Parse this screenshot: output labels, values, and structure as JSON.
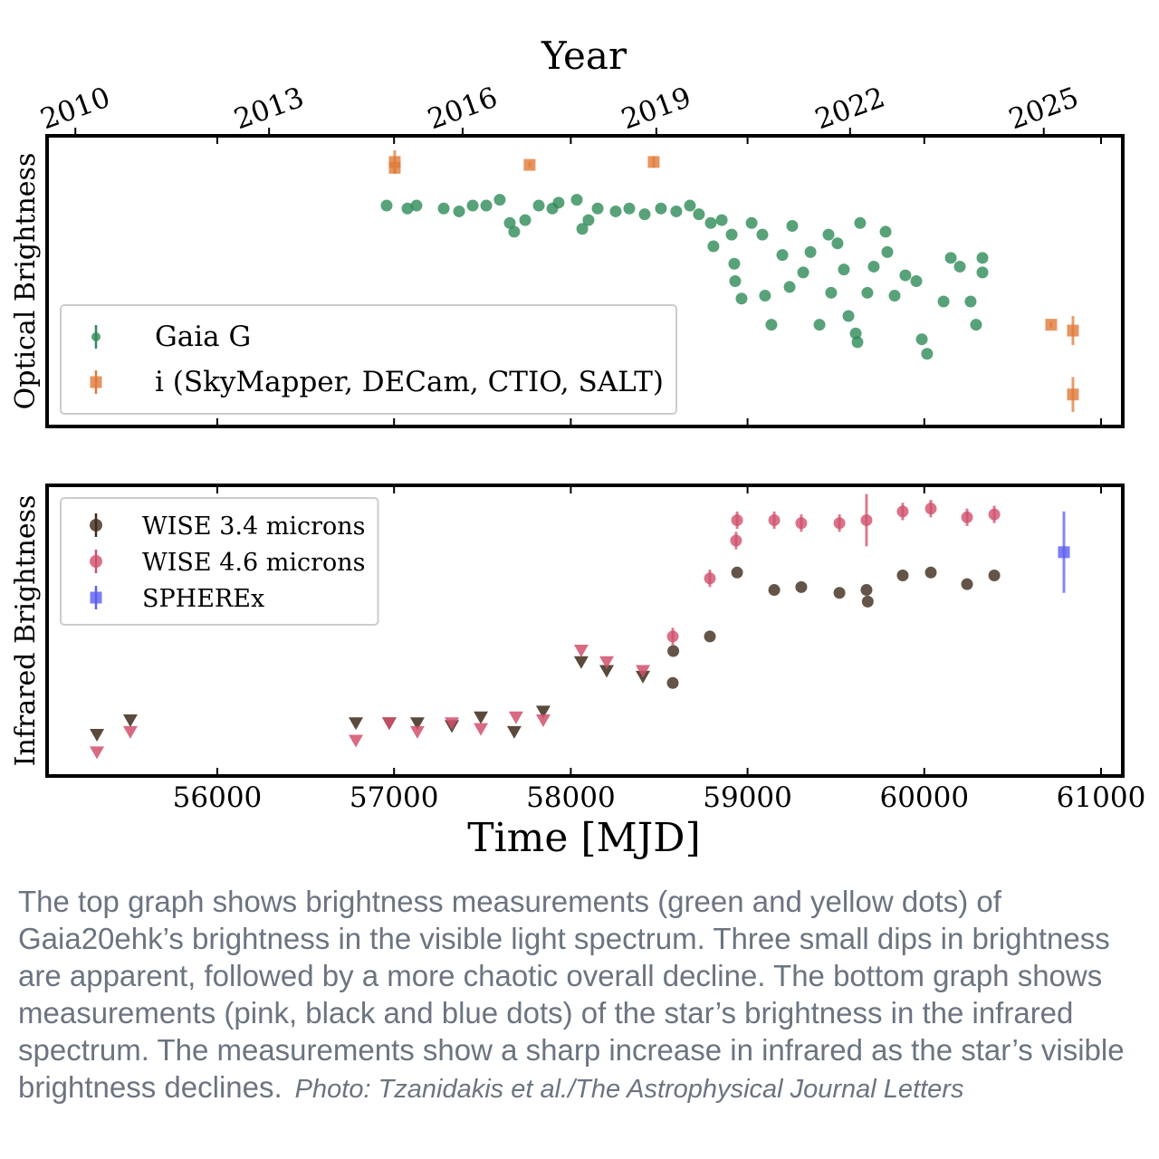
{
  "chart_data": [
    {
      "type": "scatter",
      "x2label": "Year",
      "ylabel": "Optical Brightness",
      "legend": "lower left",
      "xlim": [
        55037,
        61123
      ],
      "ylim": [
        0,
        100
      ],
      "xticks": [
        56000,
        57000,
        58000,
        59000,
        60000,
        61000
      ],
      "x2ticks": [
        {
          "value": 55197,
          "label": "2010"
        },
        {
          "value": 56293,
          "label": "2013"
        },
        {
          "value": 57388,
          "label": "2016"
        },
        {
          "value": 58484,
          "label": "2019"
        },
        {
          "value": 59580,
          "label": "2022"
        },
        {
          "value": 60676,
          "label": "2025"
        }
      ],
      "series": [
        {
          "name": "Gaia G",
          "color": "#2e8b57",
          "marker": "o",
          "x": [
            56958,
            57076,
            57127,
            57281,
            57368,
            57445,
            57522,
            57598,
            57655,
            57680,
            57742,
            57819,
            57896,
            57931,
            58034,
            58065,
            58100,
            58152,
            58254,
            58331,
            58418,
            58510,
            58597,
            58674,
            58725,
            58792,
            58854,
            58807,
            58910,
            58925,
            58930,
            58966,
            59023,
            59084,
            59099,
            59135,
            59197,
            59238,
            59253,
            59315,
            59356,
            59407,
            59458,
            59473,
            59509,
            59545,
            59571,
            59612,
            59622,
            59637,
            59678,
            59714,
            59781,
            59791,
            59832,
            59893,
            59955,
            59986,
            60016,
            60109,
            60150,
            60201,
            60262,
            60293,
            60329,
            60329
          ],
          "values": [
            76,
            75,
            76,
            75,
            74,
            76,
            76,
            78,
            70,
            67,
            71,
            76,
            75,
            77,
            78,
            68,
            71,
            75,
            74,
            75,
            73,
            75,
            74,
            76,
            73,
            70,
            71,
            62,
            66,
            56,
            50,
            44,
            70,
            66,
            45,
            35,
            59,
            48,
            69,
            53,
            60,
            35,
            66,
            46,
            63,
            54,
            38,
            32,
            29,
            70,
            46,
            55,
            67,
            60,
            45,
            52,
            50,
            30,
            25,
            43,
            58,
            55,
            43,
            35,
            58,
            53
          ]
        },
        {
          "name": "i (SkyMapper, DECam, CTIO, SALT)",
          "color": "#e07b39",
          "marker": "s",
          "x": [
            57004,
            57004,
            57767,
            58469,
            60718,
            60841,
            60841
          ],
          "values": [
            91,
            89,
            90,
            91,
            35,
            33,
            11
          ],
          "errors": [
            4,
            2,
            1,
            2,
            1,
            5,
            6
          ]
        }
      ]
    },
    {
      "type": "scatter",
      "xlabel": "Time [MJD]",
      "ylabel": "Infrared Brightness",
      "legend": "upper left",
      "xlim": [
        55037,
        61123
      ],
      "ylim": [
        0,
        100
      ],
      "xticks": [
        56000,
        57000,
        58000,
        59000,
        60000,
        61000
      ],
      "series": [
        {
          "name": "WISE 3.4 microns",
          "color": "#3d2a1a",
          "marker": "o",
          "x": [
            55319,
            55508,
            56784,
            56973,
            57132,
            57327,
            57491,
            57680,
            57844,
            58059,
            58203,
            58408,
            58577,
            58580,
            58787,
            58941,
            59151,
            59304,
            59520,
            59673,
            59680,
            59878,
            60037,
            60242,
            60396
          ],
          "values": [
            14,
            19,
            18,
            18,
            18,
            17,
            20,
            15,
            22,
            39,
            36,
            34,
            32,
            43,
            48,
            70,
            64,
            65,
            63,
            64,
            60,
            69,
            70,
            66,
            69
          ],
          "upper_limit": [
            true,
            true,
            true,
            true,
            true,
            true,
            true,
            true,
            true,
            true,
            true,
            true,
            false,
            false,
            false,
            false,
            false,
            false,
            false,
            false,
            false,
            false,
            false,
            false,
            false
          ]
        },
        {
          "name": "WISE 4.6 microns",
          "color": "#d1506c",
          "marker": "o",
          "x": [
            55319,
            55508,
            56784,
            56973,
            57132,
            57327,
            57491,
            57690,
            57844,
            58059,
            58203,
            58408,
            58577,
            58787,
            58935,
            58941,
            59151,
            59304,
            59520,
            59673,
            59878,
            60037,
            60242,
            60396
          ],
          "values": [
            8,
            15,
            12,
            18,
            15,
            18,
            16,
            20,
            19,
            43,
            39,
            36,
            48,
            68,
            81,
            88,
            88,
            87,
            87,
            88,
            91,
            92,
            89,
            90
          ],
          "errors": [
            null,
            null,
            null,
            null,
            null,
            null,
            null,
            null,
            null,
            null,
            null,
            null,
            3,
            3,
            3,
            3,
            3,
            3,
            3,
            9,
            3,
            3,
            3,
            3
          ],
          "upper_limit": [
            true,
            true,
            true,
            true,
            true,
            true,
            true,
            true,
            true,
            true,
            true,
            true,
            false,
            false,
            false,
            false,
            false,
            false,
            false,
            false,
            false,
            false,
            false,
            false
          ]
        },
        {
          "name": "SPHEREx",
          "color": "#5a5ef0",
          "marker": "s",
          "x": [
            60790
          ],
          "values": [
            77
          ],
          "errors": [
            14
          ]
        }
      ]
    }
  ],
  "caption": "The top graph shows brightness measurements (green and yellow dots) of Gaia20ehk’s brightness in the visible light spectrum. Three small dips in brightness are apparent, followed by a more chaotic overall decline. The bottom graph shows measurements (pink, black and blue dots) of the star’s brightness in the infrared spectrum. The measurements show a sharp increase in infrared as the star’s visible brightness declines.",
  "credit": "Photo: Tzanidakis et al./The Astrophysical Journal Letters"
}
